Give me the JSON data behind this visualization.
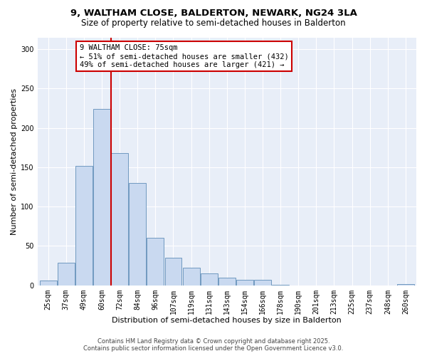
{
  "title_line1": "9, WALTHAM CLOSE, BALDERTON, NEWARK, NG24 3LA",
  "title_line2": "Size of property relative to semi-detached houses in Balderton",
  "xlabel": "Distribution of semi-detached houses by size in Balderton",
  "ylabel": "Number of semi-detached properties",
  "categories": [
    "25sqm",
    "37sqm",
    "49sqm",
    "60sqm",
    "72sqm",
    "84sqm",
    "96sqm",
    "107sqm",
    "119sqm",
    "131sqm",
    "143sqm",
    "154sqm",
    "166sqm",
    "178sqm",
    "190sqm",
    "201sqm",
    "213sqm",
    "225sqm",
    "237sqm",
    "248sqm",
    "260sqm"
  ],
  "values": [
    6,
    29,
    152,
    224,
    168,
    130,
    60,
    35,
    22,
    15,
    10,
    7,
    7,
    1,
    0,
    0,
    0,
    0,
    0,
    0,
    2
  ],
  "bar_color": "#c9d9f0",
  "bar_edge_color": "#7099c0",
  "bar_edge_width": 0.7,
  "vline_pos": 3.5,
  "vline_color": "#cc0000",
  "annotation_text": "9 WALTHAM CLOSE: 75sqm\n← 51% of semi-detached houses are smaller (432)\n49% of semi-detached houses are larger (421) →",
  "annotation_box_color": "#ffffff",
  "annotation_box_edge": "#cc0000",
  "ylim": [
    0,
    315
  ],
  "yticks": [
    0,
    50,
    100,
    150,
    200,
    250,
    300
  ],
  "bg_color": "#e8eef8",
  "footer_line1": "Contains HM Land Registry data © Crown copyright and database right 2025.",
  "footer_line2": "Contains public sector information licensed under the Open Government Licence v3.0.",
  "title_fontsize": 9.5,
  "subtitle_fontsize": 8.5,
  "xlabel_fontsize": 8,
  "ylabel_fontsize": 8,
  "tick_fontsize": 7,
  "ann_fontsize": 7.5,
  "footer_fontsize": 6
}
